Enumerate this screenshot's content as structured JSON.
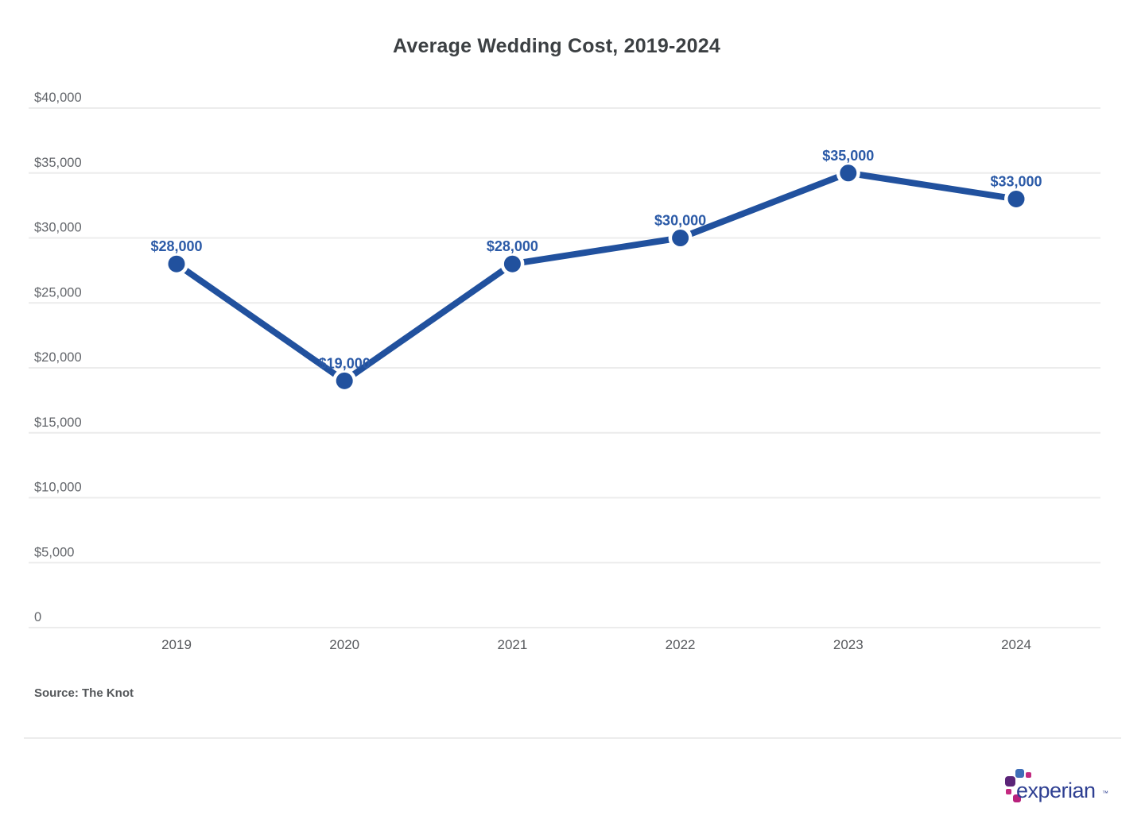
{
  "title": "Average Wedding Cost, 2019-2024",
  "chart_data": {
    "type": "line",
    "title": "Average Wedding Cost, 2019-2024",
    "categories": [
      "2019",
      "2020",
      "2021",
      "2022",
      "2023",
      "2024"
    ],
    "values": [
      28000,
      19000,
      28000,
      30000,
      35000,
      33000
    ],
    "point_labels": [
      "$28,000",
      "$19,000",
      "$28,000",
      "$30,000",
      "$35,000",
      "$33,000"
    ],
    "xlabel": "",
    "ylabel": "",
    "ylim": [
      0,
      40000
    ],
    "ytick_step": 5000,
    "ytick_labels": [
      "0",
      "$5,000",
      "$10,000",
      "$15,000",
      "$20,000",
      "$25,000",
      "$30,000",
      "$35,000",
      "$40,000"
    ],
    "grid": true,
    "legend": "none",
    "line_color": "#21519e",
    "point_color": "#21519e",
    "point_label_color": "#2b5aa7",
    "gridline_color": "#ececec",
    "ytick_color": "#63666b",
    "xtick_color": "#57595d"
  },
  "source": {
    "text": "Source: The Knot"
  },
  "brand": {
    "name": "experian",
    "trademark": "™"
  }
}
